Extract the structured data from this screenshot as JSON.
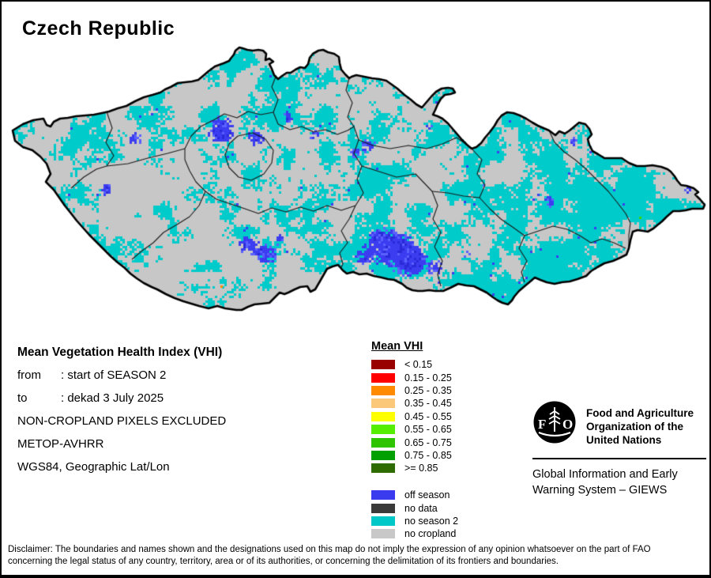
{
  "title": "Czech Republic",
  "info": {
    "title": "Mean Vegetation Health Index (VHI)",
    "rows": [
      {
        "label": "from",
        "value": ": start of SEASON 2"
      },
      {
        "label": "to",
        "value": ": dekad 3 July 2025"
      }
    ],
    "lines": [
      "NON-CROPLAND PIXELS EXCLUDED",
      "METOP-AVHRR",
      "WGS84, Geographic Lat/Lon"
    ]
  },
  "legend": {
    "title": "Mean VHI",
    "classes": [
      {
        "label": "< 0.15",
        "color": "#990000"
      },
      {
        "label": "0.15 - 0.25",
        "color": "#FF0000"
      },
      {
        "label": "0.25 - 0.35",
        "color": "#FF8A00"
      },
      {
        "label": "0.35 - 0.45",
        "color": "#FAC878"
      },
      {
        "label": "0.45 - 0.55",
        "color": "#FFFF00"
      },
      {
        "label": "0.55 - 0.65",
        "color": "#55EE00"
      },
      {
        "label": "0.65 - 0.75",
        "color": "#2FC400"
      },
      {
        "label": "0.75 - 0.85",
        "color": "#00A000"
      },
      {
        "label": ">= 0.85",
        "color": "#2E6B00"
      }
    ],
    "status": [
      {
        "label": "off season",
        "color": "#3A3AEE"
      },
      {
        "label": "no data",
        "color": "#3A3A3A"
      },
      {
        "label": "no season 2",
        "color": "#00C8C8"
      },
      {
        "label": "no cropland",
        "color": "#C8C8C8"
      }
    ]
  },
  "map": {
    "colors": {
      "no_cropland": "#C7C7C7",
      "no_season2": "#00CBCB",
      "off_season": "#3C3CF0",
      "off_season_dark": "#2A2AD8",
      "off_season_light": "#5A62FF",
      "accent_green": "#44D400",
      "accent_orange": "#FF8A00",
      "border": "#000000",
      "region_border": "#1A1A1A"
    }
  },
  "org": {
    "logo_text": "FAO",
    "name_lines": [
      "Food and Agriculture",
      "Organization of the",
      "United Nations"
    ],
    "subtitle_lines": [
      "Global Information and Early",
      "Warning System – GIEWS"
    ]
  },
  "disclaimer": {
    "line1": "Disclaimer: The boundaries and names shown and the designations used on this map do not imply the expression of any opinion whatsoever on the part of FAO",
    "line2": "concerning the legal status of any country, territory, area or of its authorities, or concerning the delimitation of its frontiers and boundaries."
  }
}
